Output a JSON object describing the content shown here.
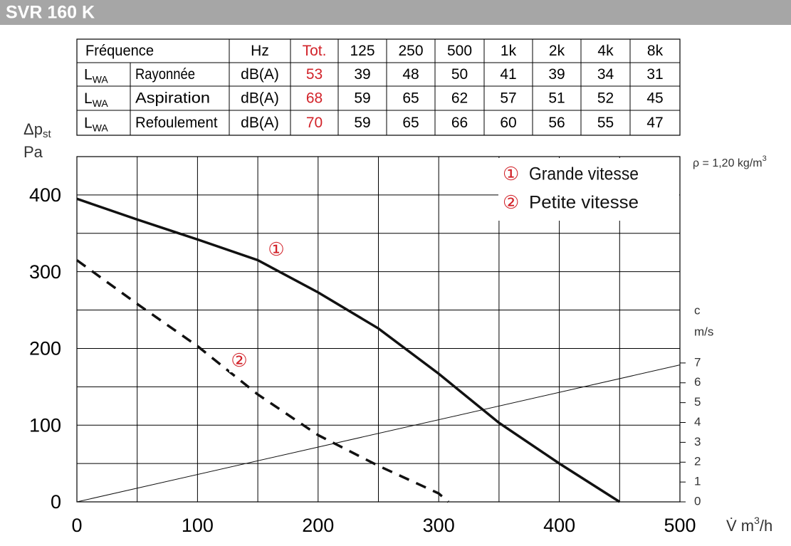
{
  "header": {
    "title": "SVR 160 K"
  },
  "table": {
    "header": [
      "Fréquence",
      "Hz",
      "Tot.",
      "125",
      "250",
      "500",
      "1k",
      "2k",
      "4k",
      "8k"
    ],
    "rows": [
      {
        "symbol": "L",
        "sub": "WA",
        "name": "Rayonnée",
        "unit": "dB(A)",
        "values": [
          53,
          39,
          48,
          50,
          41,
          39,
          34,
          31
        ]
      },
      {
        "symbol": "L",
        "sub": "WA",
        "name": "Aspiration",
        "unit": "dB(A)",
        "values": [
          68,
          59,
          65,
          62,
          57,
          51,
          52,
          45
        ]
      },
      {
        "symbol": "L",
        "sub": "WA",
        "name": "Refoulement",
        "unit": "dB(A)",
        "values": [
          70,
          59,
          65,
          66,
          60,
          56,
          55,
          47
        ]
      }
    ]
  },
  "chart_data": {
    "type": "line",
    "y_label": "Δp",
    "y_label_sub": "st",
    "y_unit": "Pa",
    "x_label": "V̇ m",
    "x_label_sup": "3",
    "x_label_end": "/h",
    "density": "ρ = 1,20 kg/m",
    "density_sup": "3",
    "y2_label": "c",
    "y2_unit": "m/s",
    "xlim": [
      0,
      500
    ],
    "xticks": [
      0,
      100,
      200,
      300,
      400,
      500
    ],
    "xminor": [
      50,
      150,
      250,
      350,
      450
    ],
    "ylim": [
      0,
      450
    ],
    "yticks": [
      0,
      100,
      200,
      300,
      400
    ],
    "yminor": [
      50,
      150,
      250,
      350,
      450
    ],
    "y2lim": [
      0,
      17.4
    ],
    "y2ticks": [
      0,
      1,
      2,
      3,
      4,
      5,
      6,
      7
    ],
    "grid": true,
    "series": [
      {
        "name": "Grande vitesse",
        "marker": "①",
        "color": "#111111",
        "dashed": false,
        "x": [
          0,
          50,
          100,
          150,
          200,
          250,
          300,
          350,
          400,
          450
        ],
        "values": [
          395,
          368,
          342,
          315,
          273,
          226,
          167,
          103,
          50,
          0
        ]
      },
      {
        "name": "Petite vitesse",
        "marker": "②",
        "color": "#111111",
        "dashed": true,
        "x": [
          0,
          50,
          100,
          150,
          200,
          250,
          300,
          308
        ],
        "values": [
          315,
          258,
          203,
          140,
          87,
          47,
          11,
          0
        ]
      },
      {
        "axis": "y2",
        "color": "#111111",
        "x": [
          0,
          500
        ],
        "values": [
          0,
          6.9
        ]
      }
    ],
    "marker_color": "#d2232a"
  }
}
